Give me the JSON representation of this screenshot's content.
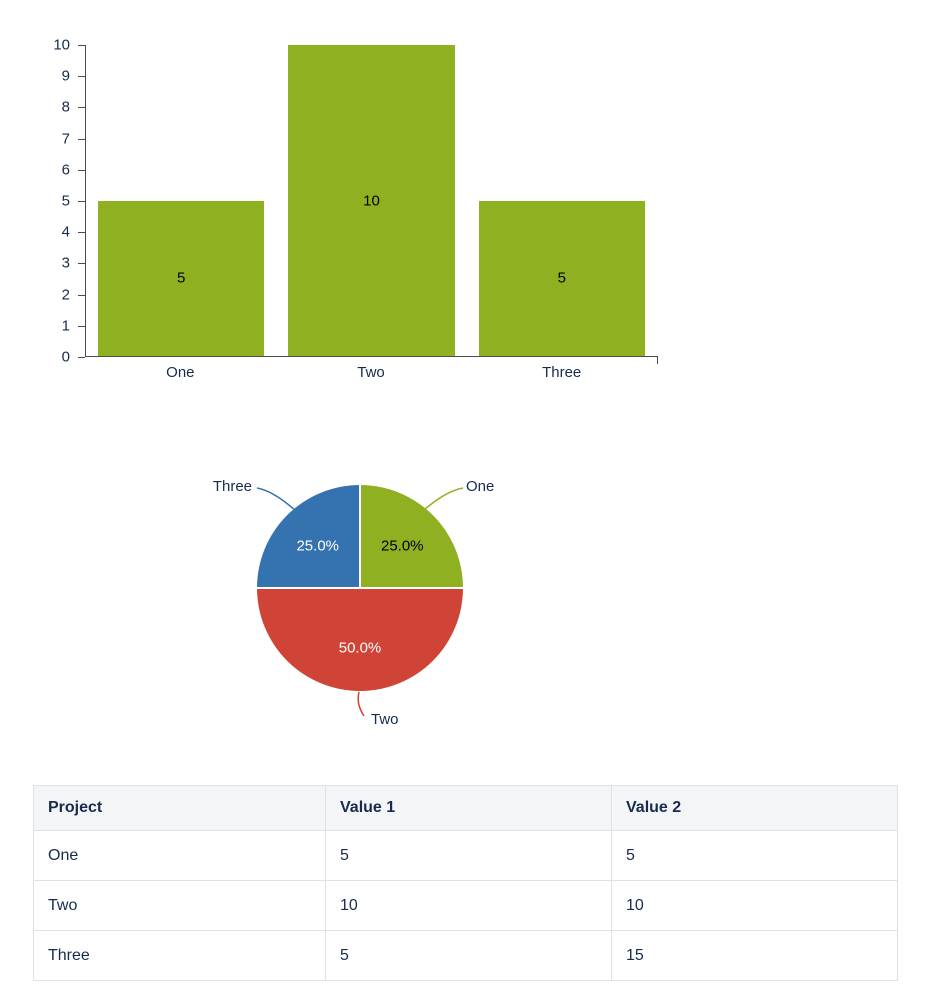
{
  "chart_data": [
    {
      "type": "bar",
      "title": "",
      "xlabel": "",
      "ylabel": "",
      "categories": [
        "One",
        "Two",
        "Three"
      ],
      "values": [
        5,
        10,
        5
      ],
      "data_labels": [
        "5",
        "10",
        "5"
      ],
      "ylim": [
        0,
        10
      ],
      "y_ticks": [
        0,
        1,
        2,
        3,
        4,
        5,
        6,
        7,
        8,
        9,
        10
      ],
      "grid": false,
      "legend": "none",
      "bar_color": "#8eb021",
      "value_label_color": "#000000",
      "axis_text_color": "#172b4d"
    },
    {
      "type": "pie",
      "title": "",
      "start_angle": "top",
      "direction": "clockwise",
      "slices": [
        {
          "label": "One",
          "value": 25.0,
          "pct_label": "25.0%",
          "color": "#8eb021",
          "pct_text_color": "#000000"
        },
        {
          "label": "Two",
          "value": 50.0,
          "pct_label": "50.0%",
          "color": "#d04437",
          "pct_text_color": "#ffffff"
        },
        {
          "label": "Three",
          "value": 25.0,
          "pct_label": "25.0%",
          "color": "#3572b0",
          "pct_text_color": "#ffffff"
        }
      ]
    },
    {
      "type": "table",
      "headers": [
        "Project",
        "Value 1",
        "Value 2"
      ],
      "rows": [
        [
          "One",
          "5",
          "5"
        ],
        [
          "Two",
          "10",
          "10"
        ],
        [
          "Three",
          "5",
          "15"
        ]
      ]
    }
  ],
  "colors": {
    "background": "#ffffff",
    "table_header_bg": "#f4f5f7",
    "table_border": "#dfe1e6",
    "text": "#172b4d"
  }
}
